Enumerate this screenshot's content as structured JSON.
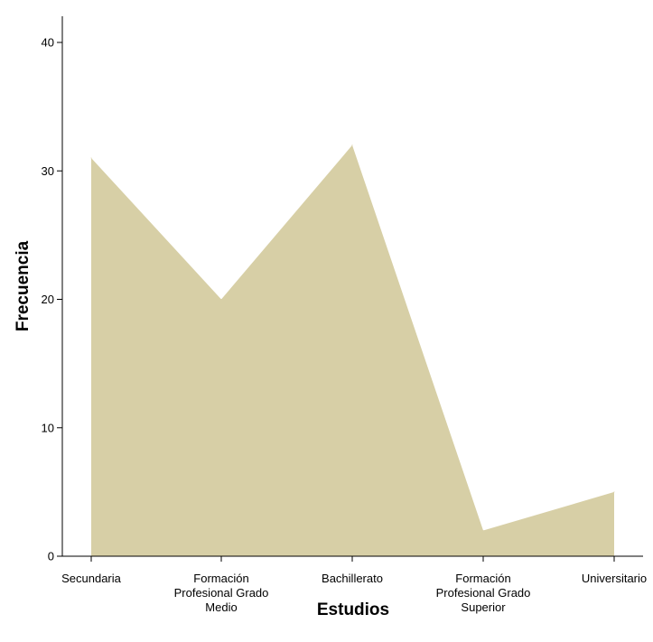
{
  "chart_data": {
    "type": "area",
    "categories": [
      "Secundaria",
      "Formación Profesional Grado Medio",
      "Bachillerato",
      "Formación Profesional Grado Superior",
      "Universitario"
    ],
    "category_label_lines": [
      [
        "Secundaria"
      ],
      [
        "Formación",
        "Profesional Grado",
        "Medio"
      ],
      [
        "Bachillerato"
      ],
      [
        "Formación",
        "Profesional Grado",
        "Superior"
      ],
      [
        "Universitario"
      ]
    ],
    "values": [
      31,
      20,
      32,
      2,
      5
    ],
    "xlabel": "Estudios",
    "ylabel": "Frecuencia",
    "ylim": [
      0,
      40
    ],
    "yticks": [
      0,
      10,
      20,
      30,
      40
    ],
    "grid": false,
    "colors": {
      "fill": "#d7cfa6",
      "axis": "#000000"
    }
  }
}
